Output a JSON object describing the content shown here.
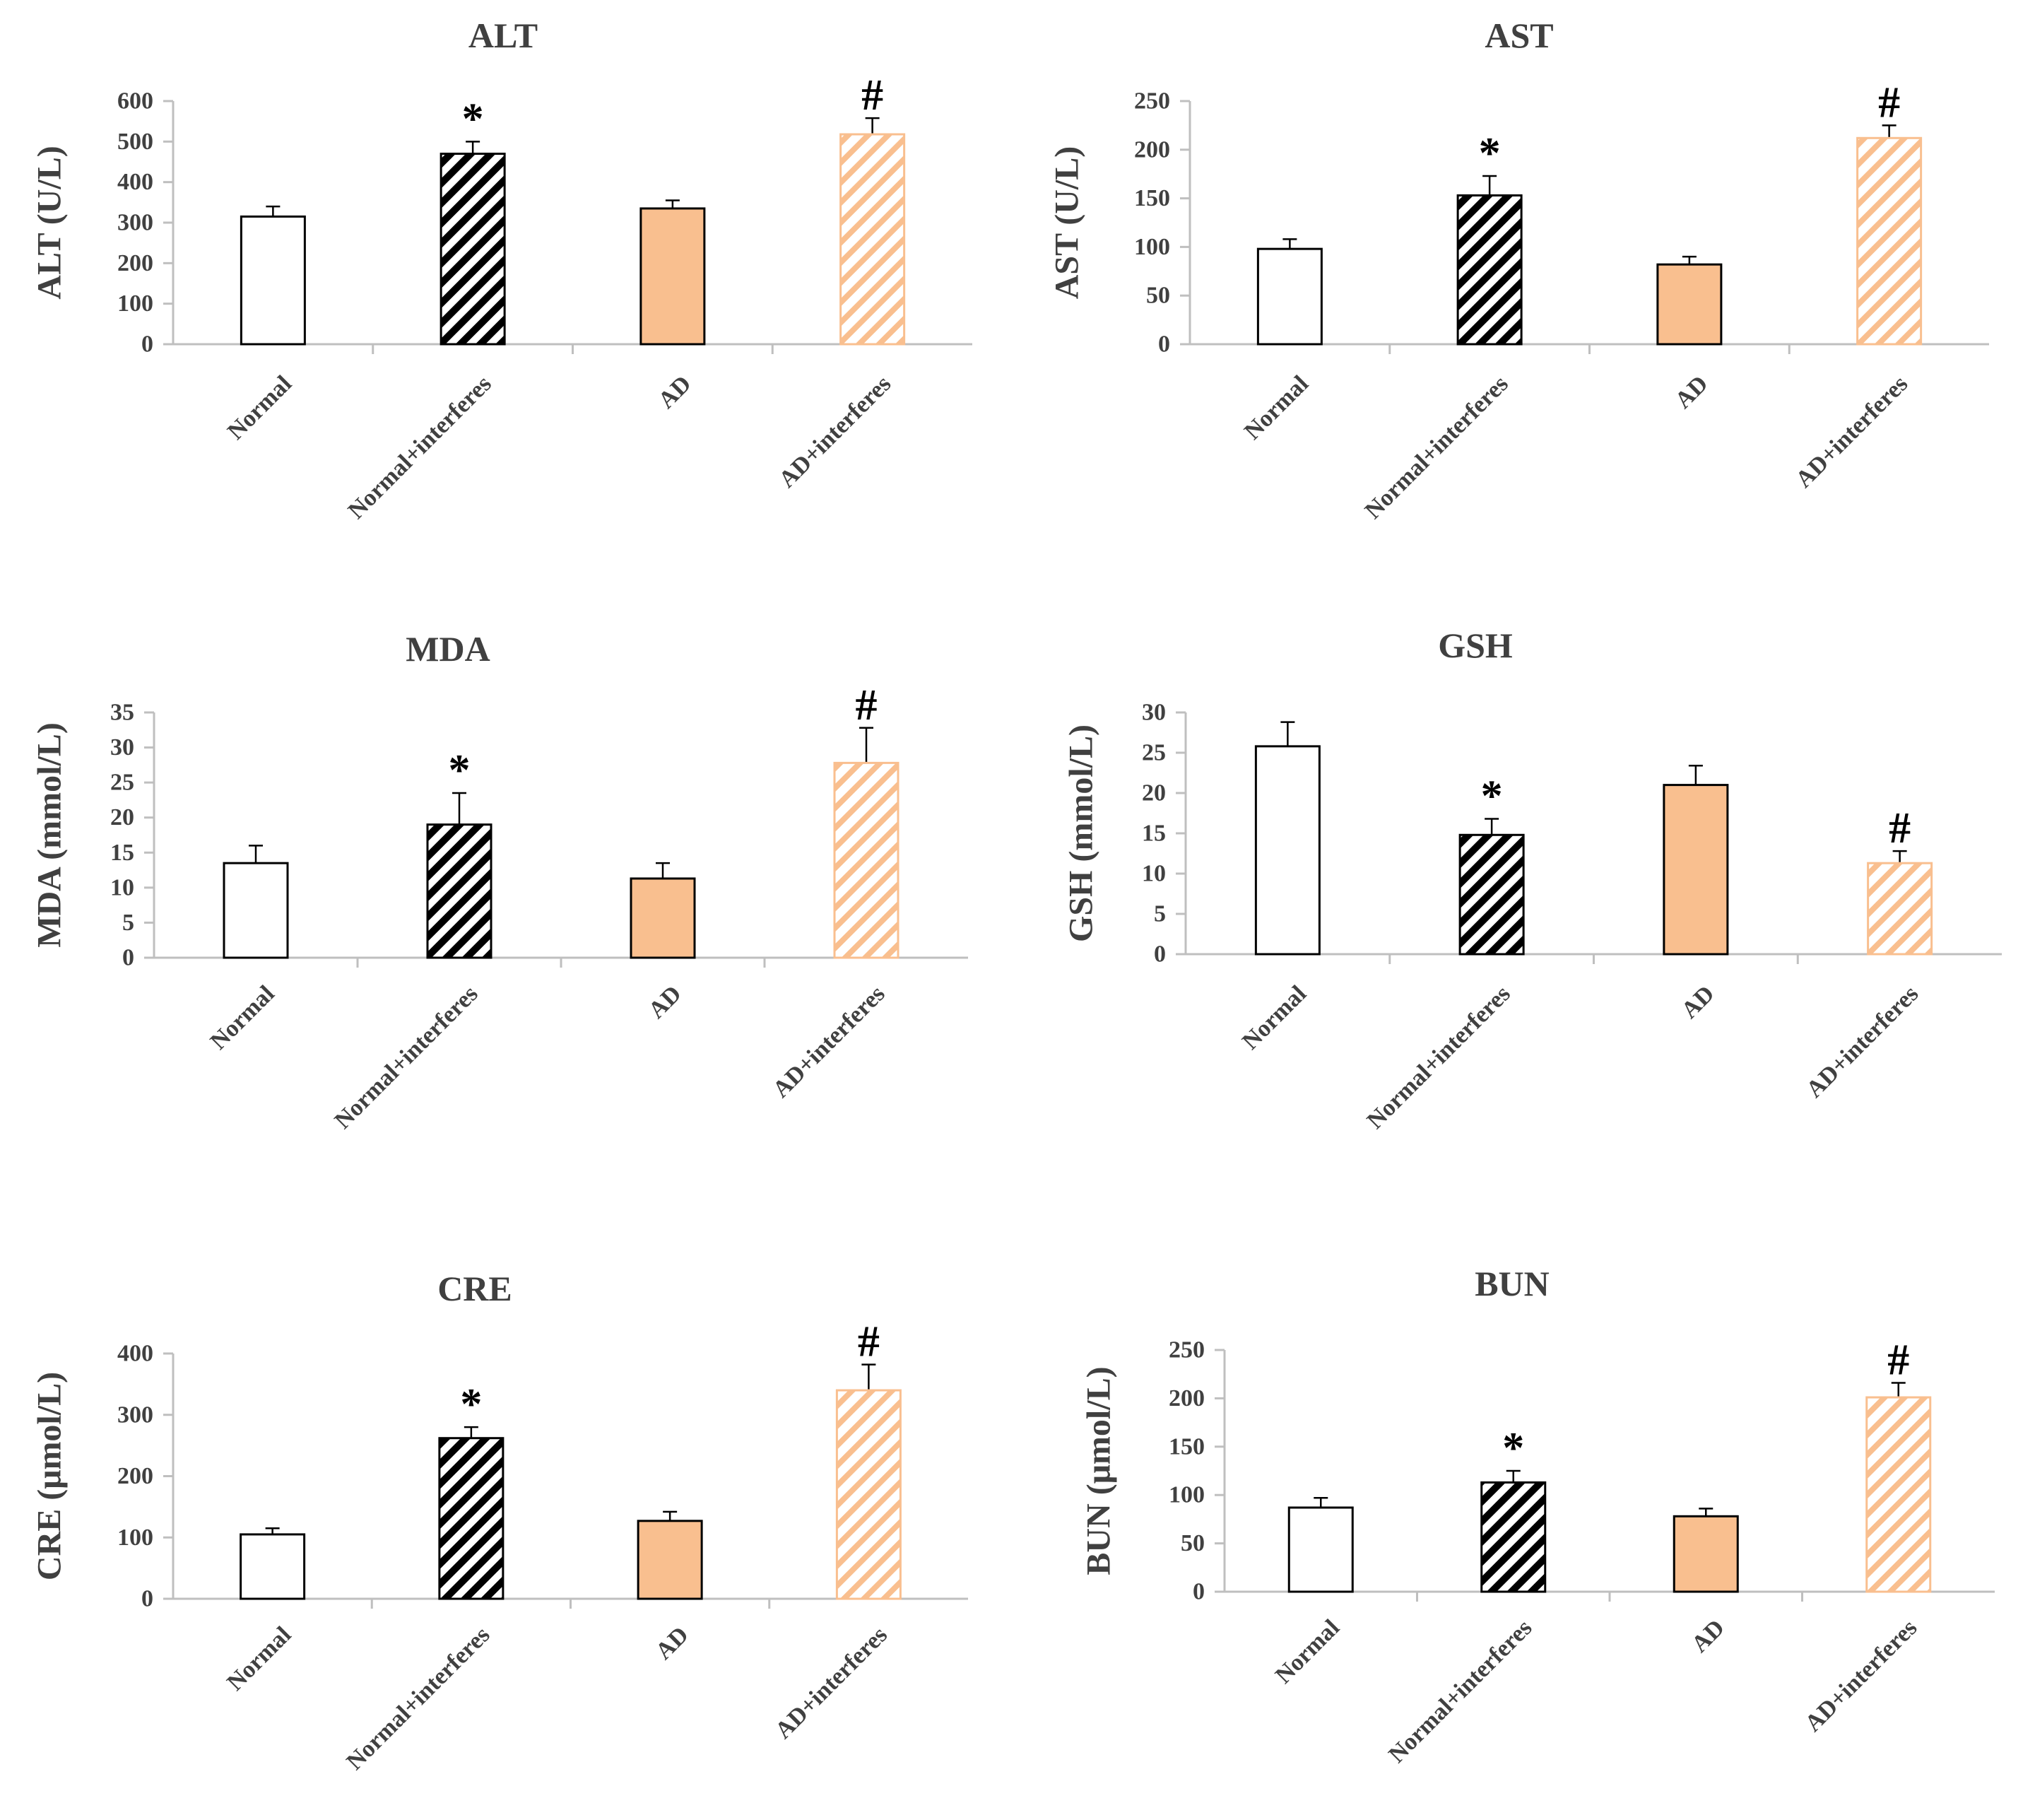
{
  "figure": {
    "groups": [
      "Normal",
      "Normal+interferes",
      "AD",
      "AD+interferes"
    ],
    "colors": {
      "white": "#ffffff",
      "black_hatch": "#000000",
      "orange": "#f9bf8f",
      "orange_hatch": "#f9bf8f",
      "axis": "#bfbfbf",
      "outline": "#000000"
    }
  },
  "chart_data": [
    {
      "type": "bar",
      "title": "ALT",
      "ylabel": "ALT (U/L)",
      "categories": [
        "Normal",
        "Normal+interferes",
        "AD",
        "AD+interferes"
      ],
      "values": [
        315,
        470,
        335,
        518
      ],
      "errors": [
        25,
        30,
        20,
        40
      ],
      "ylim": [
        0,
        600
      ],
      "yticks": [
        "0",
        "100",
        "200",
        "300",
        "400",
        "500",
        "600"
      ],
      "markers": [
        "",
        "*",
        "",
        "#"
      ]
    },
    {
      "type": "bar",
      "title": "AST",
      "ylabel": "AST (U/L)",
      "categories": [
        "Normal",
        "Normal+interferes",
        "AD",
        "AD+interferes"
      ],
      "values": [
        98,
        153,
        82,
        212
      ],
      "errors": [
        10,
        20,
        8,
        13
      ],
      "ylim": [
        0,
        250
      ],
      "yticks": [
        "0",
        "50",
        "100",
        "150",
        "200",
        "250"
      ],
      "markers": [
        "",
        "*",
        "",
        "#"
      ]
    },
    {
      "type": "bar",
      "title": "MDA",
      "ylabel": "MDA (mmol/L)",
      "categories": [
        "Normal",
        "Normal+interferes",
        "AD",
        "AD+interferes"
      ],
      "values": [
        13.5,
        19,
        11.3,
        27.8
      ],
      "errors": [
        2.5,
        4.5,
        2.2,
        5
      ],
      "ylim": [
        0,
        35
      ],
      "yticks": [
        "0",
        "5",
        "10",
        "15",
        "20",
        "25",
        "30",
        "35"
      ],
      "markers": [
        "",
        "*",
        "",
        "#"
      ]
    },
    {
      "type": "bar",
      "title": "GSH",
      "ylabel": "GSH (mmol/L)",
      "categories": [
        "Normal",
        "Normal+interferes",
        "AD",
        "AD+interferes"
      ],
      "values": [
        25.8,
        14.8,
        21,
        11.3
      ],
      "errors": [
        3,
        2,
        2.4,
        1.5
      ],
      "ylim": [
        0,
        30
      ],
      "yticks": [
        "0",
        "5",
        "10",
        "15",
        "20",
        "25",
        "30"
      ],
      "markers": [
        "",
        "*",
        "",
        "#"
      ]
    },
    {
      "type": "bar",
      "title": "CRE",
      "ylabel": "CRE (μmol/L)",
      "categories": [
        "Normal",
        "Normal+interferes",
        "AD",
        "AD+interferes"
      ],
      "values": [
        105,
        262,
        127,
        340
      ],
      "errors": [
        10,
        18,
        15,
        42
      ],
      "ylim": [
        0,
        400
      ],
      "yticks": [
        "0",
        "100",
        "200",
        "300",
        "400"
      ],
      "markers": [
        "",
        "*",
        "",
        "#"
      ]
    },
    {
      "type": "bar",
      "title": "BUN",
      "ylabel": "BUN (μmol/L)",
      "categories": [
        "Normal",
        "Normal+interferes",
        "AD",
        "AD+interferes"
      ],
      "values": [
        87,
        113,
        78,
        201
      ],
      "errors": [
        10,
        12,
        8,
        15
      ],
      "ylim": [
        0,
        250
      ],
      "yticks": [
        "0",
        "50",
        "100",
        "150",
        "200",
        "250"
      ],
      "markers": [
        "",
        "*",
        "",
        "#"
      ]
    }
  ]
}
